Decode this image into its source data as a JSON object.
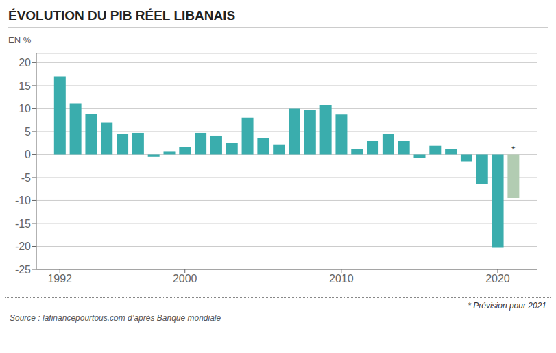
{
  "chart_data": {
    "type": "bar",
    "title": "ÉVOLUTION DU PIB RÉEL LIBANAIS",
    "ylabel": "EN %",
    "x": [
      1992,
      1993,
      1994,
      1995,
      1996,
      1997,
      1998,
      1999,
      2000,
      2001,
      2002,
      2003,
      2004,
      2005,
      2006,
      2007,
      2008,
      2009,
      2010,
      2011,
      2012,
      2013,
      2014,
      2015,
      2016,
      2017,
      2018,
      2019,
      2020,
      2021
    ],
    "values": [
      17.0,
      11.2,
      8.8,
      7.0,
      4.5,
      4.7,
      -0.5,
      0.6,
      1.7,
      4.7,
      4.1,
      2.5,
      8.0,
      3.5,
      2.2,
      10.0,
      9.7,
      10.8,
      8.7,
      1.2,
      3.0,
      4.5,
      3.0,
      -0.8,
      1.9,
      1.2,
      -1.5,
      -6.5,
      -20.3,
      -9.5
    ],
    "colors": [
      "#3aadad",
      "#3aadad",
      "#3aadad",
      "#3aadad",
      "#3aadad",
      "#3aadad",
      "#3aadad",
      "#3aadad",
      "#3aadad",
      "#3aadad",
      "#3aadad",
      "#3aadad",
      "#3aadad",
      "#3aadad",
      "#3aadad",
      "#3aadad",
      "#3aadad",
      "#3aadad",
      "#3aadad",
      "#3aadad",
      "#3aadad",
      "#3aadad",
      "#3aadad",
      "#3aadad",
      "#3aadad",
      "#3aadad",
      "#3aadad",
      "#3aadad",
      "#3aadad",
      "#b2ccb2"
    ],
    "xlim": [
      1990.5,
      2022.5
    ],
    "xticks": [
      1992,
      2000,
      2010,
      2020
    ],
    "ylim": [
      -25,
      22
    ],
    "yticks": [
      -25,
      -20,
      -15,
      -10,
      -5,
      0,
      5,
      10,
      15,
      20
    ],
    "grid": true,
    "annotations": [
      {
        "text": "*",
        "x": 2021,
        "y": 0.3
      }
    ],
    "footnote": "* Prévision pour 2021",
    "source": "Source : lafinancepourtous.com d’après Banque mondiale"
  }
}
